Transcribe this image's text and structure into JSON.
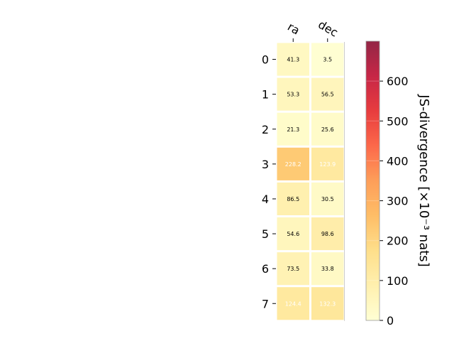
{
  "chart_data": {
    "type": "heatmap",
    "columns": [
      "ra",
      "dec"
    ],
    "rows": [
      "0",
      "1",
      "2",
      "3",
      "4",
      "5",
      "6",
      "7"
    ],
    "values": [
      [
        41.3,
        3.5
      ],
      [
        53.3,
        56.5
      ],
      [
        21.3,
        25.6
      ],
      [
        228.2,
        123.9
      ],
      [
        86.5,
        30.5
      ],
      [
        54.6,
        98.6
      ],
      [
        73.5,
        33.8
      ],
      [
        124.4,
        132.3
      ]
    ],
    "value_labels": [
      [
        "41.3",
        "3.5"
      ],
      [
        "53.3",
        "56.5"
      ],
      [
        "21.3",
        "25.6"
      ],
      [
        "228.2",
        "123.9"
      ],
      [
        "86.5",
        "30.5"
      ],
      [
        "54.6",
        "98.6"
      ],
      [
        "73.5",
        "33.8"
      ],
      [
        "124.4",
        "132.3"
      ]
    ],
    "colormap": "YlOrRd",
    "vmin": 0,
    "vmax": 700,
    "colorbar": {
      "label": "JS-divergence [×10⁻³ nats]",
      "ticks": [
        0,
        100,
        200,
        300,
        400,
        500,
        600
      ],
      "tick_labels": [
        "0",
        "100",
        "200",
        "300",
        "400",
        "500",
        "600"
      ]
    },
    "colorbar_stops": [
      "#ffffcc",
      "#ffeda0",
      "#fed976",
      "#feb24c",
      "#fd8d3c",
      "#fc4e2a",
      "#e31a1c",
      "#bd0026",
      "#800026"
    ],
    "label_dark_color": "#000000",
    "label_light_color": "#ffffff"
  }
}
